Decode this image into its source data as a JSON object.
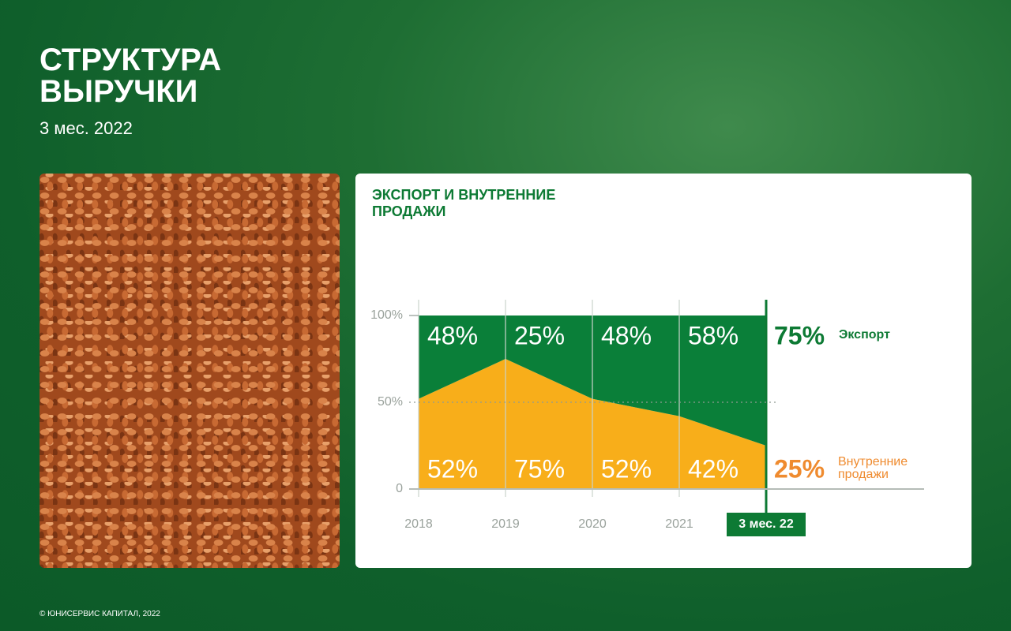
{
  "header": {
    "title": "СТРУКТУРА ВЫРУЧКИ",
    "subtitle": "3 мес. 2022"
  },
  "footer": "© ЮНИСЕРВИС КАПИТАЛ, 2022",
  "chart_data": {
    "type": "stacked_area",
    "title": "ЭКСПОРТ И ВНУТРЕННИЕ ПРОДАЖИ",
    "categories": [
      "2018",
      "2019",
      "2020",
      "2021",
      "3 мес. 22"
    ],
    "series": [
      {
        "name": "Экспорт",
        "color": "#0a7f39",
        "values": [
          48,
          25,
          48,
          58,
          75
        ],
        "value_labels": [
          "48%",
          "25%",
          "48%",
          "58%",
          "75%"
        ]
      },
      {
        "name": "Внутренние продажи",
        "color": "#f8ae1a",
        "values": [
          52,
          75,
          52,
          42,
          25
        ],
        "value_labels": [
          "52%",
          "75%",
          "52%",
          "42%",
          "25%"
        ]
      }
    ],
    "ylim": [
      0,
      100
    ],
    "yticks": [
      0,
      {
        "value": 50,
        "label": "50%"
      },
      {
        "value": 100,
        "label": "100%"
      }
    ]
  }
}
